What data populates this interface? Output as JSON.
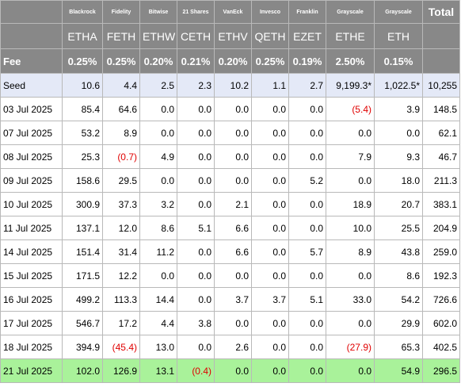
{
  "table": {
    "issuers": [
      "",
      "Blackrock",
      "Fidelity",
      "Bitwise",
      "21 Shares",
      "VanEck",
      "Invesco",
      "Franklin",
      "Grayscale",
      "Grayscale",
      "Total"
    ],
    "tickers": [
      "",
      "ETHA",
      "FETH",
      "ETHW",
      "CETH",
      "ETHV",
      "QETH",
      "EZET",
      "ETHE",
      "ETH",
      ""
    ],
    "fee_label": "Fee",
    "fees": [
      "0.25%",
      "0.25%",
      "0.20%",
      "0.21%",
      "0.20%",
      "0.25%",
      "0.19%",
      "2.50%",
      "0.15%",
      ""
    ],
    "rows": [
      {
        "date": "Seed",
        "values": [
          "10.6",
          "4.4",
          "2.5",
          "2.3",
          "10.2",
          "1.1",
          "2.7",
          "9,199.3*",
          "1,022.5*",
          "10,255"
        ]
      },
      {
        "date": "03 Jul 2025",
        "values": [
          "85.4",
          "64.6",
          "0.0",
          "0.0",
          "0.0",
          "0.0",
          "0.0",
          "(5.4)",
          "3.9",
          "148.5"
        ]
      },
      {
        "date": "07 Jul 2025",
        "values": [
          "53.2",
          "8.9",
          "0.0",
          "0.0",
          "0.0",
          "0.0",
          "0.0",
          "0.0",
          "0.0",
          "62.1"
        ]
      },
      {
        "date": "08 Jul 2025",
        "values": [
          "25.3",
          "(0.7)",
          "4.9",
          "0.0",
          "0.0",
          "0.0",
          "0.0",
          "7.9",
          "9.3",
          "46.7"
        ]
      },
      {
        "date": "09 Jul 2025",
        "values": [
          "158.6",
          "29.5",
          "0.0",
          "0.0",
          "0.0",
          "0.0",
          "5.2",
          "0.0",
          "18.0",
          "211.3"
        ]
      },
      {
        "date": "10 Jul 2025",
        "values": [
          "300.9",
          "37.3",
          "3.2",
          "0.0",
          "2.1",
          "0.0",
          "0.0",
          "18.9",
          "20.7",
          "383.1"
        ]
      },
      {
        "date": "11 Jul 2025",
        "values": [
          "137.1",
          "12.0",
          "8.6",
          "5.1",
          "6.6",
          "0.0",
          "0.0",
          "10.0",
          "25.5",
          "204.9"
        ]
      },
      {
        "date": "14 Jul 2025",
        "values": [
          "151.4",
          "31.4",
          "11.2",
          "0.0",
          "6.6",
          "0.0",
          "5.7",
          "8.9",
          "43.8",
          "259.0"
        ]
      },
      {
        "date": "15 Jul 2025",
        "values": [
          "171.5",
          "12.2",
          "0.0",
          "0.0",
          "0.0",
          "0.0",
          "0.0",
          "0.0",
          "8.6",
          "192.3"
        ]
      },
      {
        "date": "16 Jul 2025",
        "values": [
          "499.2",
          "113.3",
          "14.4",
          "0.0",
          "3.7",
          "3.7",
          "5.1",
          "33.0",
          "54.2",
          "726.6"
        ]
      },
      {
        "date": "17 Jul 2025",
        "values": [
          "546.7",
          "17.2",
          "4.4",
          "3.8",
          "0.0",
          "0.0",
          "0.0",
          "0.0",
          "29.9",
          "602.0"
        ]
      },
      {
        "date": "18 Jul 2025",
        "values": [
          "394.9",
          "(45.4)",
          "13.0",
          "0.0",
          "2.6",
          "0.0",
          "0.0",
          "(27.9)",
          "65.3",
          "402.5"
        ]
      },
      {
        "date": "21 Jul 2025",
        "values": [
          "102.0",
          "126.9",
          "13.1",
          "(0.4)",
          "0.0",
          "0.0",
          "0.0",
          "0.0",
          "54.9",
          "296.5"
        ]
      }
    ]
  },
  "colors": {
    "header_bg": "#888888",
    "seed_bg": "#e4e9f7",
    "latest_bg": "#a9f29a",
    "negative": "#e00000",
    "grid": "#b9b9b9"
  }
}
